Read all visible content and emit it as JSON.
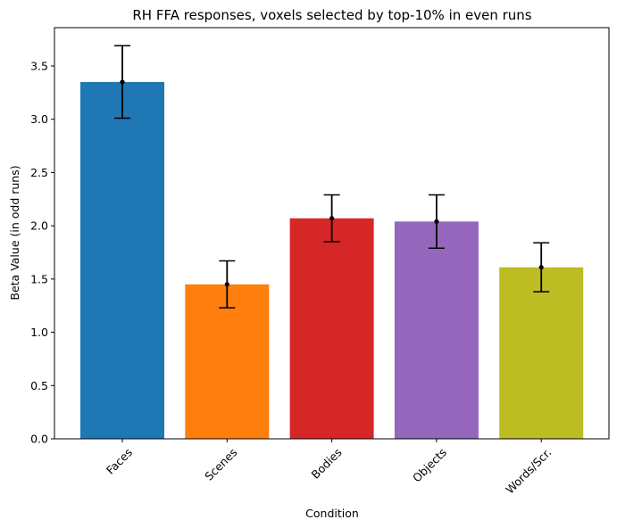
{
  "chart_data": {
    "type": "bar",
    "title": "RH FFA responses, voxels selected by top-10% in even runs",
    "xlabel": "Condition",
    "ylabel": "Beta Value (in odd runs)",
    "categories": [
      "Faces",
      "Scenes",
      "Bodies",
      "Objects",
      "Words/Scr."
    ],
    "values": [
      3.35,
      1.45,
      2.07,
      2.04,
      1.61
    ],
    "errors": [
      0.34,
      0.22,
      0.22,
      0.25,
      0.23
    ],
    "colors": [
      "#1f77b4",
      "#ff7f0e",
      "#d62728",
      "#9467bd",
      "#bcbd22"
    ],
    "ylim": [
      0,
      3.86
    ],
    "yticks": [
      "0.0",
      "0.5",
      "1.0",
      "1.5",
      "2.0",
      "2.5",
      "3.0",
      "3.5"
    ],
    "grid": false,
    "legend": "none"
  }
}
